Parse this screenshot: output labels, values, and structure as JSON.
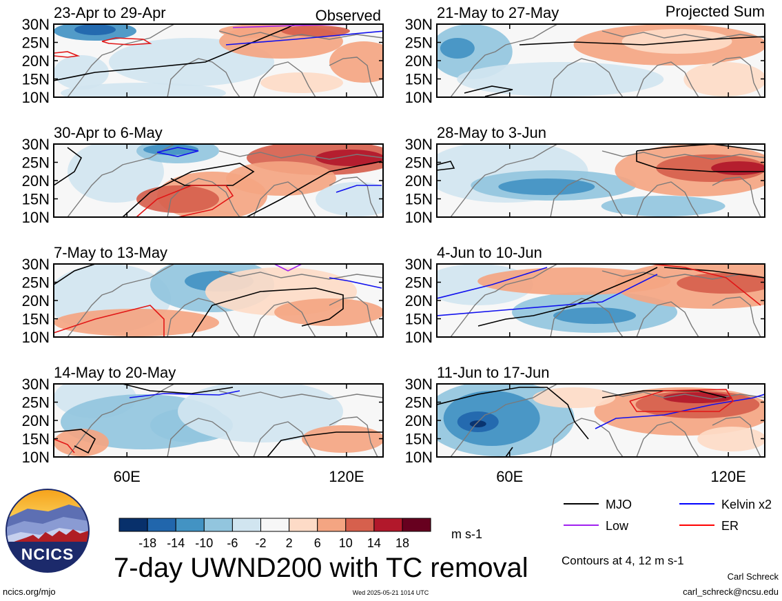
{
  "tags": {
    "left": "Observed",
    "right": "Projected Sum"
  },
  "chart_data": {
    "type": "heatmap",
    "variable": "7-day UWND200 with TC removal",
    "units": "m s-1",
    "lat_ticks": [
      "30N",
      "25N",
      "20N",
      "15N",
      "10N"
    ],
    "lon_ticks": [
      "60E",
      "120E"
    ],
    "lat_range": [
      10,
      30
    ],
    "lon_range": [
      40,
      130
    ],
    "colorbar": {
      "labels": [
        "-18",
        "-14",
        "-10",
        "-6",
        "-2",
        "2",
        "6",
        "10",
        "14",
        "18"
      ],
      "colors": [
        "#08306b",
        "#2166ac",
        "#4393c3",
        "#92c5de",
        "#d1e5f0",
        "#f7f7f7",
        "#fddbc7",
        "#f4a582",
        "#d6604d",
        "#b2182b",
        "#67001f"
      ]
    },
    "legend": [
      {
        "label": "MJO",
        "color": "#000000"
      },
      {
        "label": "Kelvin x2",
        "color": "#0000ff"
      },
      {
        "label": "Low",
        "color": "#a020f0"
      },
      {
        "label": "ER",
        "color": "#ff0000"
      }
    ],
    "contours_note": "Contours at 4, 12 m s-1",
    "panels": [
      {
        "title": "23-Apr to 29-Apr"
      },
      {
        "title": "21-May to 27-May"
      },
      {
        "title": "30-Apr to 6-May"
      },
      {
        "title": "28-May to 3-Jun"
      },
      {
        "title": "7-May to 13-May"
      },
      {
        "title": "4-Jun to 10-Jun"
      },
      {
        "title": "14-May to 20-May"
      },
      {
        "title": "11-Jun to 17-Jun"
      }
    ]
  },
  "footer": {
    "logo_text": "NCICS",
    "title": "7-day UWND200 with TC removal",
    "url": "ncics.org/mjo",
    "timestamp": "Wed 2025-05-21 1014 UTC",
    "author": "Carl Schreck",
    "email": "carl_schreck@ncsu.edu"
  }
}
